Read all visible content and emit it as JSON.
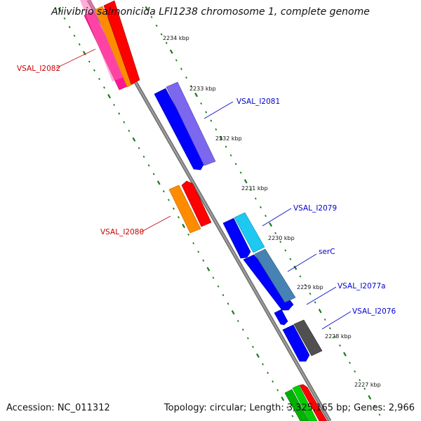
{
  "title": "Aliivibrio salmonicida LFI1238 chromosome 1, complete genome",
  "accession_text": "Accession: NC_011312",
  "summary_text": "Topology: circular; Length: 3,325,165 bp; Genes: 2,966",
  "colors": {
    "forward_label": "#cc0000",
    "reverse_label": "#0000cc",
    "tick": "#1a7a1a",
    "backbone": "#808080",
    "orf_red": "#ff0000",
    "orf_orange": "#ff8c00",
    "orf_pink": "#ff1493",
    "orf_blue": "#0000ff",
    "orf_slate": "#7b68ee",
    "orf_cyan": "#1ec8f0",
    "orf_steel": "#4682b4",
    "orf_gray": "#505050",
    "orf_green": "#00b000"
  },
  "kbp_ticks": [
    {
      "label": "2234 kbp"
    },
    {
      "label": "2233 kbp"
    },
    {
      "label": "2232 kbp"
    },
    {
      "label": "2231 kbp"
    },
    {
      "label": "2230 kbp"
    },
    {
      "label": "2229 kbp"
    },
    {
      "label": "2228 kbp"
    },
    {
      "label": "2227 kbp"
    }
  ],
  "gene_labels": [
    {
      "name": "VSAL_I2082",
      "strand": "forward"
    },
    {
      "name": "VSAL_I2081",
      "strand": "reverse"
    },
    {
      "name": "VSAL_I2080",
      "strand": "forward"
    },
    {
      "name": "VSAL_I2079",
      "strand": "reverse"
    },
    {
      "name": "serC",
      "strand": "reverse"
    },
    {
      "name": "VSAL_I2077a",
      "strand": "reverse"
    },
    {
      "name": "VSAL_I2076",
      "strand": "reverse"
    }
  ]
}
